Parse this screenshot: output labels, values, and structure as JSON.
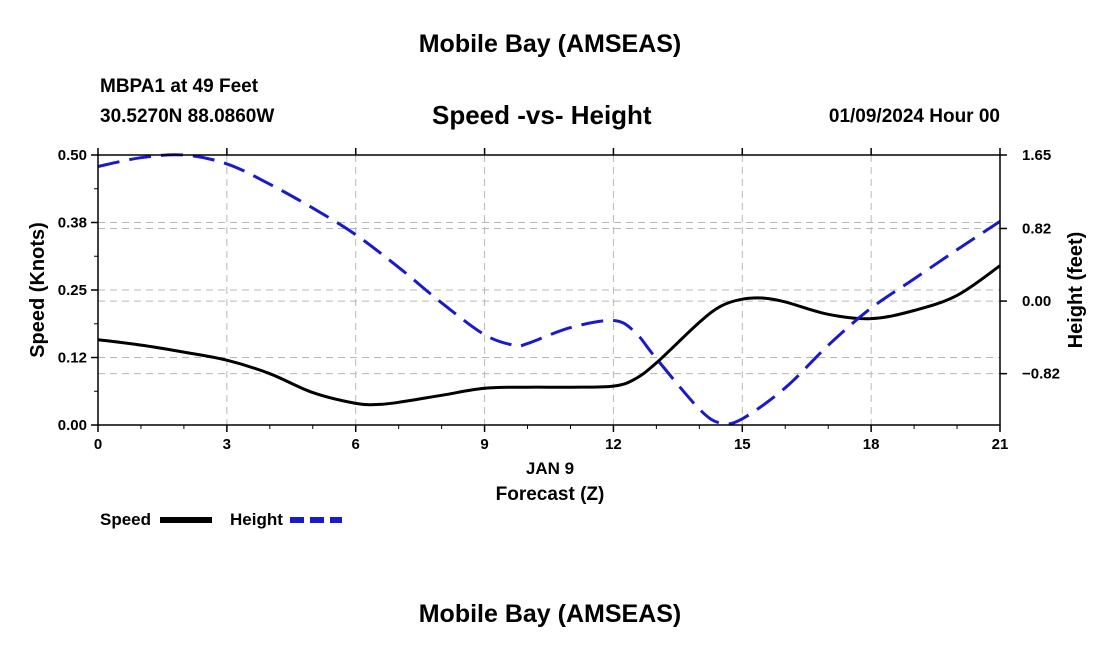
{
  "header": {
    "title": "Mobile Bay (AMSEAS)",
    "station": "MBPA1 at 49 Feet",
    "coords": "30.5270N  88.0860W",
    "subtitle": "Speed -vs- Height",
    "datetime": "01/09/2024 Hour 00"
  },
  "footer": {
    "title": "Mobile Bay (AMSEAS)"
  },
  "chart_data": {
    "type": "line",
    "title": "Speed -vs- Height",
    "xlabel": "Forecast (Z)",
    "xsublabel": "JAN 9",
    "ylabel": "Speed (Knots)",
    "y2label": "Height (feet)",
    "xlim": [
      0,
      21
    ],
    "ylim": [
      0,
      0.5
    ],
    "y2lim": [
      -1.4,
      1.65
    ],
    "xticks": [
      0,
      3,
      6,
      9,
      12,
      15,
      18,
      21
    ],
    "xtick_labels": [
      "0",
      "3",
      "6",
      "9",
      "12",
      "15",
      "18",
      "21"
    ],
    "yticks": [
      0,
      0.125,
      0.25,
      0.375,
      0.5
    ],
    "ytick_labels": [
      "0.00",
      "0.12",
      "0.25",
      "0.38",
      "0.50"
    ],
    "y2ticks": [
      -0.82,
      0,
      0.82,
      1.65
    ],
    "y2tick_labels": [
      "−0.82",
      "0.00",
      "0.82",
      "1.65"
    ],
    "grid": true,
    "legend": [
      {
        "name": "Speed",
        "color": "#000000",
        "dash": "solid"
      },
      {
        "name": "Height",
        "color": "#1a1acc",
        "dash": "dashed"
      }
    ],
    "series": [
      {
        "name": "Speed",
        "axis": "left",
        "color": "#000000",
        "x": [
          0,
          1,
          2,
          3,
          4,
          5,
          6,
          6.5,
          7,
          8,
          9,
          10,
          11,
          12,
          12.5,
          13,
          14,
          14.5,
          15,
          15.5,
          16,
          17,
          18,
          19,
          20,
          21
        ],
        "values": [
          0.158,
          0.148,
          0.135,
          0.12,
          0.095,
          0.06,
          0.04,
          0.038,
          0.042,
          0.055,
          0.068,
          0.07,
          0.07,
          0.072,
          0.085,
          0.115,
          0.19,
          0.22,
          0.233,
          0.235,
          0.228,
          0.205,
          0.197,
          0.212,
          0.24,
          0.295
        ]
      },
      {
        "name": "Height",
        "axis": "right",
        "color": "#1a1acc",
        "x": [
          0,
          1,
          2,
          3,
          4,
          5,
          6,
          7,
          8,
          9,
          9.7,
          10,
          11,
          12,
          12.5,
          13,
          14,
          14.5,
          15,
          16,
          17,
          18,
          19,
          20,
          21
        ],
        "values": [
          1.52,
          1.62,
          1.65,
          1.55,
          1.32,
          1.05,
          0.75,
          0.38,
          -0.02,
          -0.38,
          -0.5,
          -0.48,
          -0.3,
          -0.22,
          -0.35,
          -0.65,
          -1.22,
          -1.38,
          -1.33,
          -0.98,
          -0.5,
          -0.08,
          0.25,
          0.58,
          0.9
        ]
      }
    ]
  }
}
